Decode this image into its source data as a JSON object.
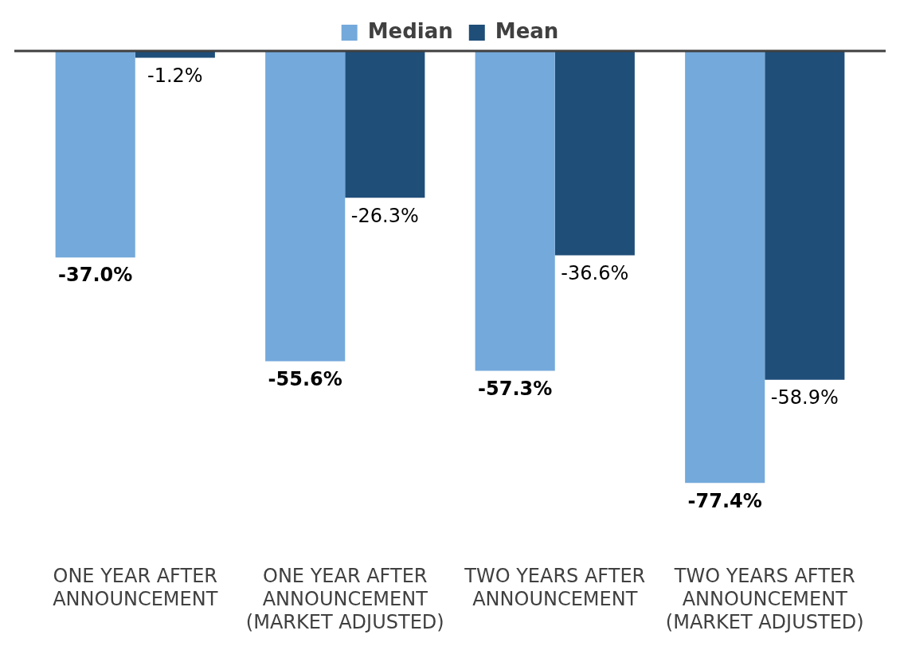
{
  "chart_data": {
    "type": "bar",
    "categories": [
      "ONE YEAR AFTER ANNOUNCEMENT",
      "ONE YEAR AFTER ANNOUNCEMENT (MARKET ADJUSTED)",
      "TWO YEARS AFTER ANNOUNCEMENT",
      "TWO YEARS AFTER ANNOUNCEMENT (MARKET ADJUSTED)"
    ],
    "series": [
      {
        "name": "Median",
        "color": "#74a9db",
        "values": [
          -37.0,
          -55.6,
          -57.3,
          -77.4
        ],
        "value_labels": [
          "-37.0%",
          "-55.6%",
          "-57.3%",
          "-77.4%"
        ]
      },
      {
        "name": "Mean",
        "color": "#1f4e79",
        "values": [
          -1.2,
          -26.3,
          -36.6,
          -58.9
        ],
        "value_labels": [
          "-1.2%",
          "-26.3%",
          "-36.6%",
          "-58.9%"
        ]
      }
    ],
    "legend": "top",
    "grid": false,
    "tick_labels": "x"
  }
}
